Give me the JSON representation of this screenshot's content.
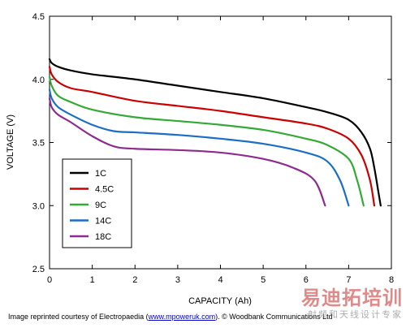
{
  "chart_data": {
    "type": "line",
    "title": "",
    "xlabel": "CAPACITY (Ah)",
    "ylabel": "VOLTAGE (V)",
    "xlim": [
      0,
      8
    ],
    "ylim": [
      2.5,
      4.5
    ],
    "x_ticks": [
      "0",
      "1",
      "2",
      "3",
      "4",
      "5",
      "6",
      "7",
      "8"
    ],
    "y_ticks": [
      "2.5",
      "3.0",
      "3.5",
      "4.0",
      "4.5"
    ],
    "grid": false,
    "legend_position": "bottom-left",
    "series": [
      {
        "name": "1C",
        "color": "#000000",
        "points": [
          [
            0,
            4.16
          ],
          [
            0.05,
            4.13
          ],
          [
            0.2,
            4.1
          ],
          [
            0.5,
            4.07
          ],
          [
            1,
            4.04
          ],
          [
            2,
            4.0
          ],
          [
            3,
            3.95
          ],
          [
            4,
            3.9
          ],
          [
            5,
            3.85
          ],
          [
            6,
            3.78
          ],
          [
            6.5,
            3.74
          ],
          [
            7,
            3.68
          ],
          [
            7.3,
            3.58
          ],
          [
            7.5,
            3.45
          ],
          [
            7.6,
            3.3
          ],
          [
            7.7,
            3.1
          ],
          [
            7.75,
            3.0
          ]
        ]
      },
      {
        "name": "4.5C",
        "color": "#cc0000",
        "points": [
          [
            0,
            4.1
          ],
          [
            0.05,
            4.04
          ],
          [
            0.2,
            3.98
          ],
          [
            0.5,
            3.93
          ],
          [
            1,
            3.9
          ],
          [
            2,
            3.83
          ],
          [
            3,
            3.79
          ],
          [
            4,
            3.75
          ],
          [
            5,
            3.7
          ],
          [
            6,
            3.65
          ],
          [
            6.5,
            3.61
          ],
          [
            7,
            3.53
          ],
          [
            7.3,
            3.4
          ],
          [
            7.5,
            3.2
          ],
          [
            7.6,
            3.0
          ]
        ]
      },
      {
        "name": "9C",
        "color": "#33aa33",
        "points": [
          [
            0,
            4.02
          ],
          [
            0.05,
            3.95
          ],
          [
            0.2,
            3.87
          ],
          [
            0.5,
            3.82
          ],
          [
            1,
            3.76
          ],
          [
            2,
            3.7
          ],
          [
            3,
            3.67
          ],
          [
            4,
            3.64
          ],
          [
            5,
            3.6
          ],
          [
            6,
            3.53
          ],
          [
            6.5,
            3.48
          ],
          [
            7,
            3.37
          ],
          [
            7.2,
            3.2
          ],
          [
            7.35,
            3.0
          ]
        ]
      },
      {
        "name": "14C",
        "color": "#1a6fc4",
        "points": [
          [
            0,
            3.92
          ],
          [
            0.05,
            3.85
          ],
          [
            0.2,
            3.78
          ],
          [
            0.5,
            3.72
          ],
          [
            1,
            3.64
          ],
          [
            1.5,
            3.59
          ],
          [
            2,
            3.58
          ],
          [
            3,
            3.56
          ],
          [
            4,
            3.53
          ],
          [
            5,
            3.49
          ],
          [
            6,
            3.42
          ],
          [
            6.5,
            3.35
          ],
          [
            6.8,
            3.2
          ],
          [
            7,
            3.0
          ]
        ]
      },
      {
        "name": "18C",
        "color": "#8e2b8e",
        "points": [
          [
            0,
            3.85
          ],
          [
            0.05,
            3.78
          ],
          [
            0.2,
            3.72
          ],
          [
            0.5,
            3.66
          ],
          [
            1,
            3.55
          ],
          [
            1.5,
            3.47
          ],
          [
            2,
            3.45
          ],
          [
            3,
            3.44
          ],
          [
            4,
            3.42
          ],
          [
            5,
            3.37
          ],
          [
            5.7,
            3.3
          ],
          [
            6.2,
            3.2
          ],
          [
            6.45,
            3.0
          ]
        ]
      }
    ]
  },
  "credit": {
    "prefix": "Image reprinted courtesy of Electropaedia (",
    "link_text": "www.mpoweruk.com",
    "suffix": "). © Woodbank Communications Ltd"
  },
  "watermark": {
    "main": "易迪拓培训",
    "sub": "射频和天线设计专家"
  }
}
